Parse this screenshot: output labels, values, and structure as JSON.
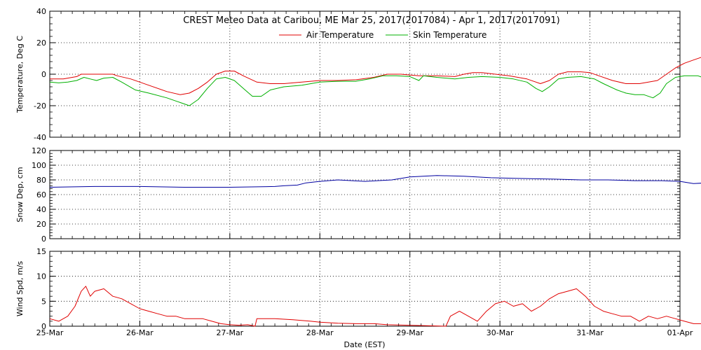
{
  "title": "CREST Meteo Data at Caribou, ME   Mar 25, 2017(2017084) - Apr  1, 2017(2017091)",
  "xlabel": "Date (EST)",
  "x_ticks": [
    "25-Mar",
    "26-Mar",
    "27-Mar",
    "28-Mar",
    "29-Mar",
    "30-Mar",
    "31-Mar",
    "01-Apr"
  ],
  "colors": {
    "air": "#e00000",
    "skin": "#00b000",
    "snow": "#0000a0",
    "wind": "#e00000"
  },
  "legend": [
    {
      "name": "Air Temperature",
      "color": "#e00000"
    },
    {
      "name": "Skin Temperature",
      "color": "#00b000"
    }
  ],
  "chart_data": [
    {
      "type": "line",
      "ylabel": "Temperature, Deg C",
      "ylim": [
        -40,
        40
      ],
      "y_ticks": [
        -40,
        -20,
        0,
        20,
        40
      ],
      "grid": true,
      "legend_position": "top-center",
      "series": [
        {
          "name": "Air Temperature",
          "color": "#e00000",
          "points": [
            [
              0.0,
              -3
            ],
            [
              0.15,
              -3
            ],
            [
              0.3,
              -1.5
            ],
            [
              0.35,
              0
            ],
            [
              0.5,
              0
            ],
            [
              0.7,
              0
            ],
            [
              0.75,
              -1
            ],
            [
              0.9,
              -3
            ],
            [
              1.1,
              -7
            ],
            [
              1.3,
              -11
            ],
            [
              1.45,
              -13
            ],
            [
              1.55,
              -12
            ],
            [
              1.65,
              -9
            ],
            [
              1.75,
              -5
            ],
            [
              1.85,
              0
            ],
            [
              1.95,
              2
            ],
            [
              2.05,
              2
            ],
            [
              2.15,
              -1
            ],
            [
              2.3,
              -5
            ],
            [
              2.45,
              -6
            ],
            [
              2.6,
              -6
            ],
            [
              2.8,
              -5
            ],
            [
              3.0,
              -4
            ],
            [
              3.2,
              -4
            ],
            [
              3.4,
              -3.5
            ],
            [
              3.6,
              -2
            ],
            [
              3.75,
              0
            ],
            [
              3.9,
              0
            ],
            [
              4.1,
              -1
            ],
            [
              4.3,
              -1
            ],
            [
              4.5,
              -1.5
            ],
            [
              4.6,
              0
            ],
            [
              4.7,
              1
            ],
            [
              4.8,
              1
            ],
            [
              4.95,
              0
            ],
            [
              5.1,
              -1
            ],
            [
              5.3,
              -3
            ],
            [
              5.45,
              -6
            ],
            [
              5.55,
              -4
            ],
            [
              5.65,
              0
            ],
            [
              5.75,
              1.5
            ],
            [
              5.9,
              1.5
            ],
            [
              6.0,
              1
            ],
            [
              6.1,
              -1
            ],
            [
              6.25,
              -4
            ],
            [
              6.4,
              -6
            ],
            [
              6.55,
              -6
            ],
            [
              6.65,
              -5
            ],
            [
              6.75,
              -4
            ],
            [
              6.85,
              0
            ],
            [
              6.95,
              4
            ],
            [
              7.05,
              7
            ],
            [
              7.15,
              9
            ],
            [
              7.25,
              11
            ],
            [
              7.32,
              9
            ],
            [
              7.38,
              3
            ]
          ]
        },
        {
          "name": "Skin Temperature",
          "color": "#00b000",
          "points": [
            [
              0.0,
              -5
            ],
            [
              0.1,
              -5.5
            ],
            [
              0.2,
              -5
            ],
            [
              0.3,
              -4
            ],
            [
              0.38,
              -2
            ],
            [
              0.45,
              -3
            ],
            [
              0.52,
              -4
            ],
            [
              0.6,
              -2.5
            ],
            [
              0.7,
              -2
            ],
            [
              0.8,
              -5
            ],
            [
              0.95,
              -10
            ],
            [
              1.1,
              -12
            ],
            [
              1.3,
              -15
            ],
            [
              1.45,
              -18
            ],
            [
              1.55,
              -20
            ],
            [
              1.65,
              -16
            ],
            [
              1.75,
              -9
            ],
            [
              1.85,
              -3
            ],
            [
              1.95,
              -2
            ],
            [
              2.05,
              -4
            ],
            [
              2.15,
              -9
            ],
            [
              2.25,
              -14
            ],
            [
              2.35,
              -14
            ],
            [
              2.45,
              -10
            ],
            [
              2.6,
              -8
            ],
            [
              2.8,
              -7
            ],
            [
              3.0,
              -5
            ],
            [
              3.2,
              -4.5
            ],
            [
              3.4,
              -4.5
            ],
            [
              3.55,
              -3
            ],
            [
              3.7,
              -1
            ],
            [
              3.85,
              -1
            ],
            [
              4.0,
              -1.5
            ],
            [
              4.1,
              -4
            ],
            [
              4.15,
              -1
            ],
            [
              4.3,
              -2
            ],
            [
              4.5,
              -3
            ],
            [
              4.65,
              -2
            ],
            [
              4.8,
              -1.5
            ],
            [
              5.0,
              -2
            ],
            [
              5.15,
              -3
            ],
            [
              5.3,
              -5
            ],
            [
              5.4,
              -9
            ],
            [
              5.47,
              -11
            ],
            [
              5.55,
              -8
            ],
            [
              5.65,
              -3
            ],
            [
              5.75,
              -2
            ],
            [
              5.9,
              -1.5
            ],
            [
              6.05,
              -3
            ],
            [
              6.15,
              -6
            ],
            [
              6.3,
              -10
            ],
            [
              6.4,
              -12
            ],
            [
              6.5,
              -13
            ],
            [
              6.6,
              -13
            ],
            [
              6.7,
              -15
            ],
            [
              6.78,
              -12
            ],
            [
              6.85,
              -6
            ],
            [
              6.95,
              -2
            ],
            [
              7.05,
              -1
            ],
            [
              7.2,
              -1
            ],
            [
              7.3,
              -3
            ],
            [
              7.38,
              -5
            ]
          ]
        }
      ]
    },
    {
      "type": "line",
      "ylabel": "Snow Dep, cm",
      "ylim": [
        0,
        120
      ],
      "y_ticks": [
        0,
        20,
        40,
        60,
        80,
        100,
        120
      ],
      "grid": true,
      "series": [
        {
          "name": "",
          "color": "#0000a0",
          "points": [
            [
              0.0,
              70
            ],
            [
              0.5,
              71
            ],
            [
              1.0,
              71
            ],
            [
              1.5,
              70
            ],
            [
              2.0,
              70
            ],
            [
              2.5,
              71
            ],
            [
              2.6,
              72
            ],
            [
              2.75,
              73
            ],
            [
              2.85,
              76
            ],
            [
              3.0,
              78
            ],
            [
              3.2,
              80
            ],
            [
              3.5,
              78
            ],
            [
              3.8,
              80
            ],
            [
              4.0,
              84
            ],
            [
              4.3,
              86
            ],
            [
              4.6,
              85
            ],
            [
              4.9,
              83
            ],
            [
              5.2,
              82
            ],
            [
              5.6,
              81
            ],
            [
              5.9,
              80
            ],
            [
              6.2,
              80
            ],
            [
              6.5,
              79
            ],
            [
              6.8,
              79
            ],
            [
              7.0,
              78
            ],
            [
              7.15,
              75
            ],
            [
              7.3,
              76
            ],
            [
              7.38,
              77
            ]
          ]
        }
      ]
    },
    {
      "type": "line",
      "ylabel": "Wind Spd, m/s",
      "ylim": [
        0,
        15
      ],
      "y_ticks": [
        0,
        5,
        10,
        15
      ],
      "grid": true,
      "series": [
        {
          "name": "",
          "color": "#e00000",
          "points": [
            [
              0.0,
              1.5
            ],
            [
              0.1,
              1
            ],
            [
              0.2,
              2
            ],
            [
              0.28,
              4
            ],
            [
              0.35,
              7
            ],
            [
              0.4,
              8
            ],
            [
              0.45,
              6
            ],
            [
              0.5,
              7
            ],
            [
              0.6,
              7.5
            ],
            [
              0.7,
              6
            ],
            [
              0.8,
              5.5
            ],
            [
              0.9,
              4.5
            ],
            [
              1.0,
              3.5
            ],
            [
              1.1,
              3
            ],
            [
              1.2,
              2.5
            ],
            [
              1.3,
              2
            ],
            [
              1.4,
              2
            ],
            [
              1.5,
              1.5
            ],
            [
              1.6,
              1.5
            ],
            [
              1.7,
              1.5
            ],
            [
              1.8,
              1
            ],
            [
              1.9,
              0.5
            ],
            [
              2.0,
              0.3
            ],
            [
              2.1,
              0.2
            ],
            [
              2.2,
              0.3
            ],
            [
              2.28,
              0
            ],
            [
              2.3,
              1.5
            ],
            [
              2.4,
              1.5
            ],
            [
              2.5,
              1.5
            ],
            [
              2.7,
              1.3
            ],
            [
              2.9,
              1
            ],
            [
              3.0,
              0.8
            ],
            [
              3.2,
              0.6
            ],
            [
              3.4,
              0.5
            ],
            [
              3.6,
              0.5
            ],
            [
              3.75,
              0.3
            ],
            [
              4.4,
              0
            ],
            [
              4.45,
              2
            ],
            [
              4.55,
              3
            ],
            [
              4.65,
              2
            ],
            [
              4.75,
              1
            ],
            [
              4.85,
              3
            ],
            [
              4.95,
              4.5
            ],
            [
              5.05,
              5
            ],
            [
              5.15,
              4
            ],
            [
              5.25,
              4.5
            ],
            [
              5.35,
              3
            ],
            [
              5.45,
              4
            ],
            [
              5.55,
              5.5
            ],
            [
              5.65,
              6.5
            ],
            [
              5.75,
              7
            ],
            [
              5.85,
              7.5
            ],
            [
              5.95,
              6
            ],
            [
              6.05,
              4
            ],
            [
              6.15,
              3
            ],
            [
              6.25,
              2.5
            ],
            [
              6.35,
              2
            ],
            [
              6.45,
              2
            ],
            [
              6.55,
              1
            ],
            [
              6.65,
              2
            ],
            [
              6.75,
              1.5
            ],
            [
              6.85,
              2
            ],
            [
              6.95,
              1.5
            ],
            [
              7.05,
              1
            ],
            [
              7.15,
              0.5
            ],
            [
              7.25,
              0.5
            ],
            [
              7.35,
              0
            ]
          ]
        }
      ]
    }
  ]
}
